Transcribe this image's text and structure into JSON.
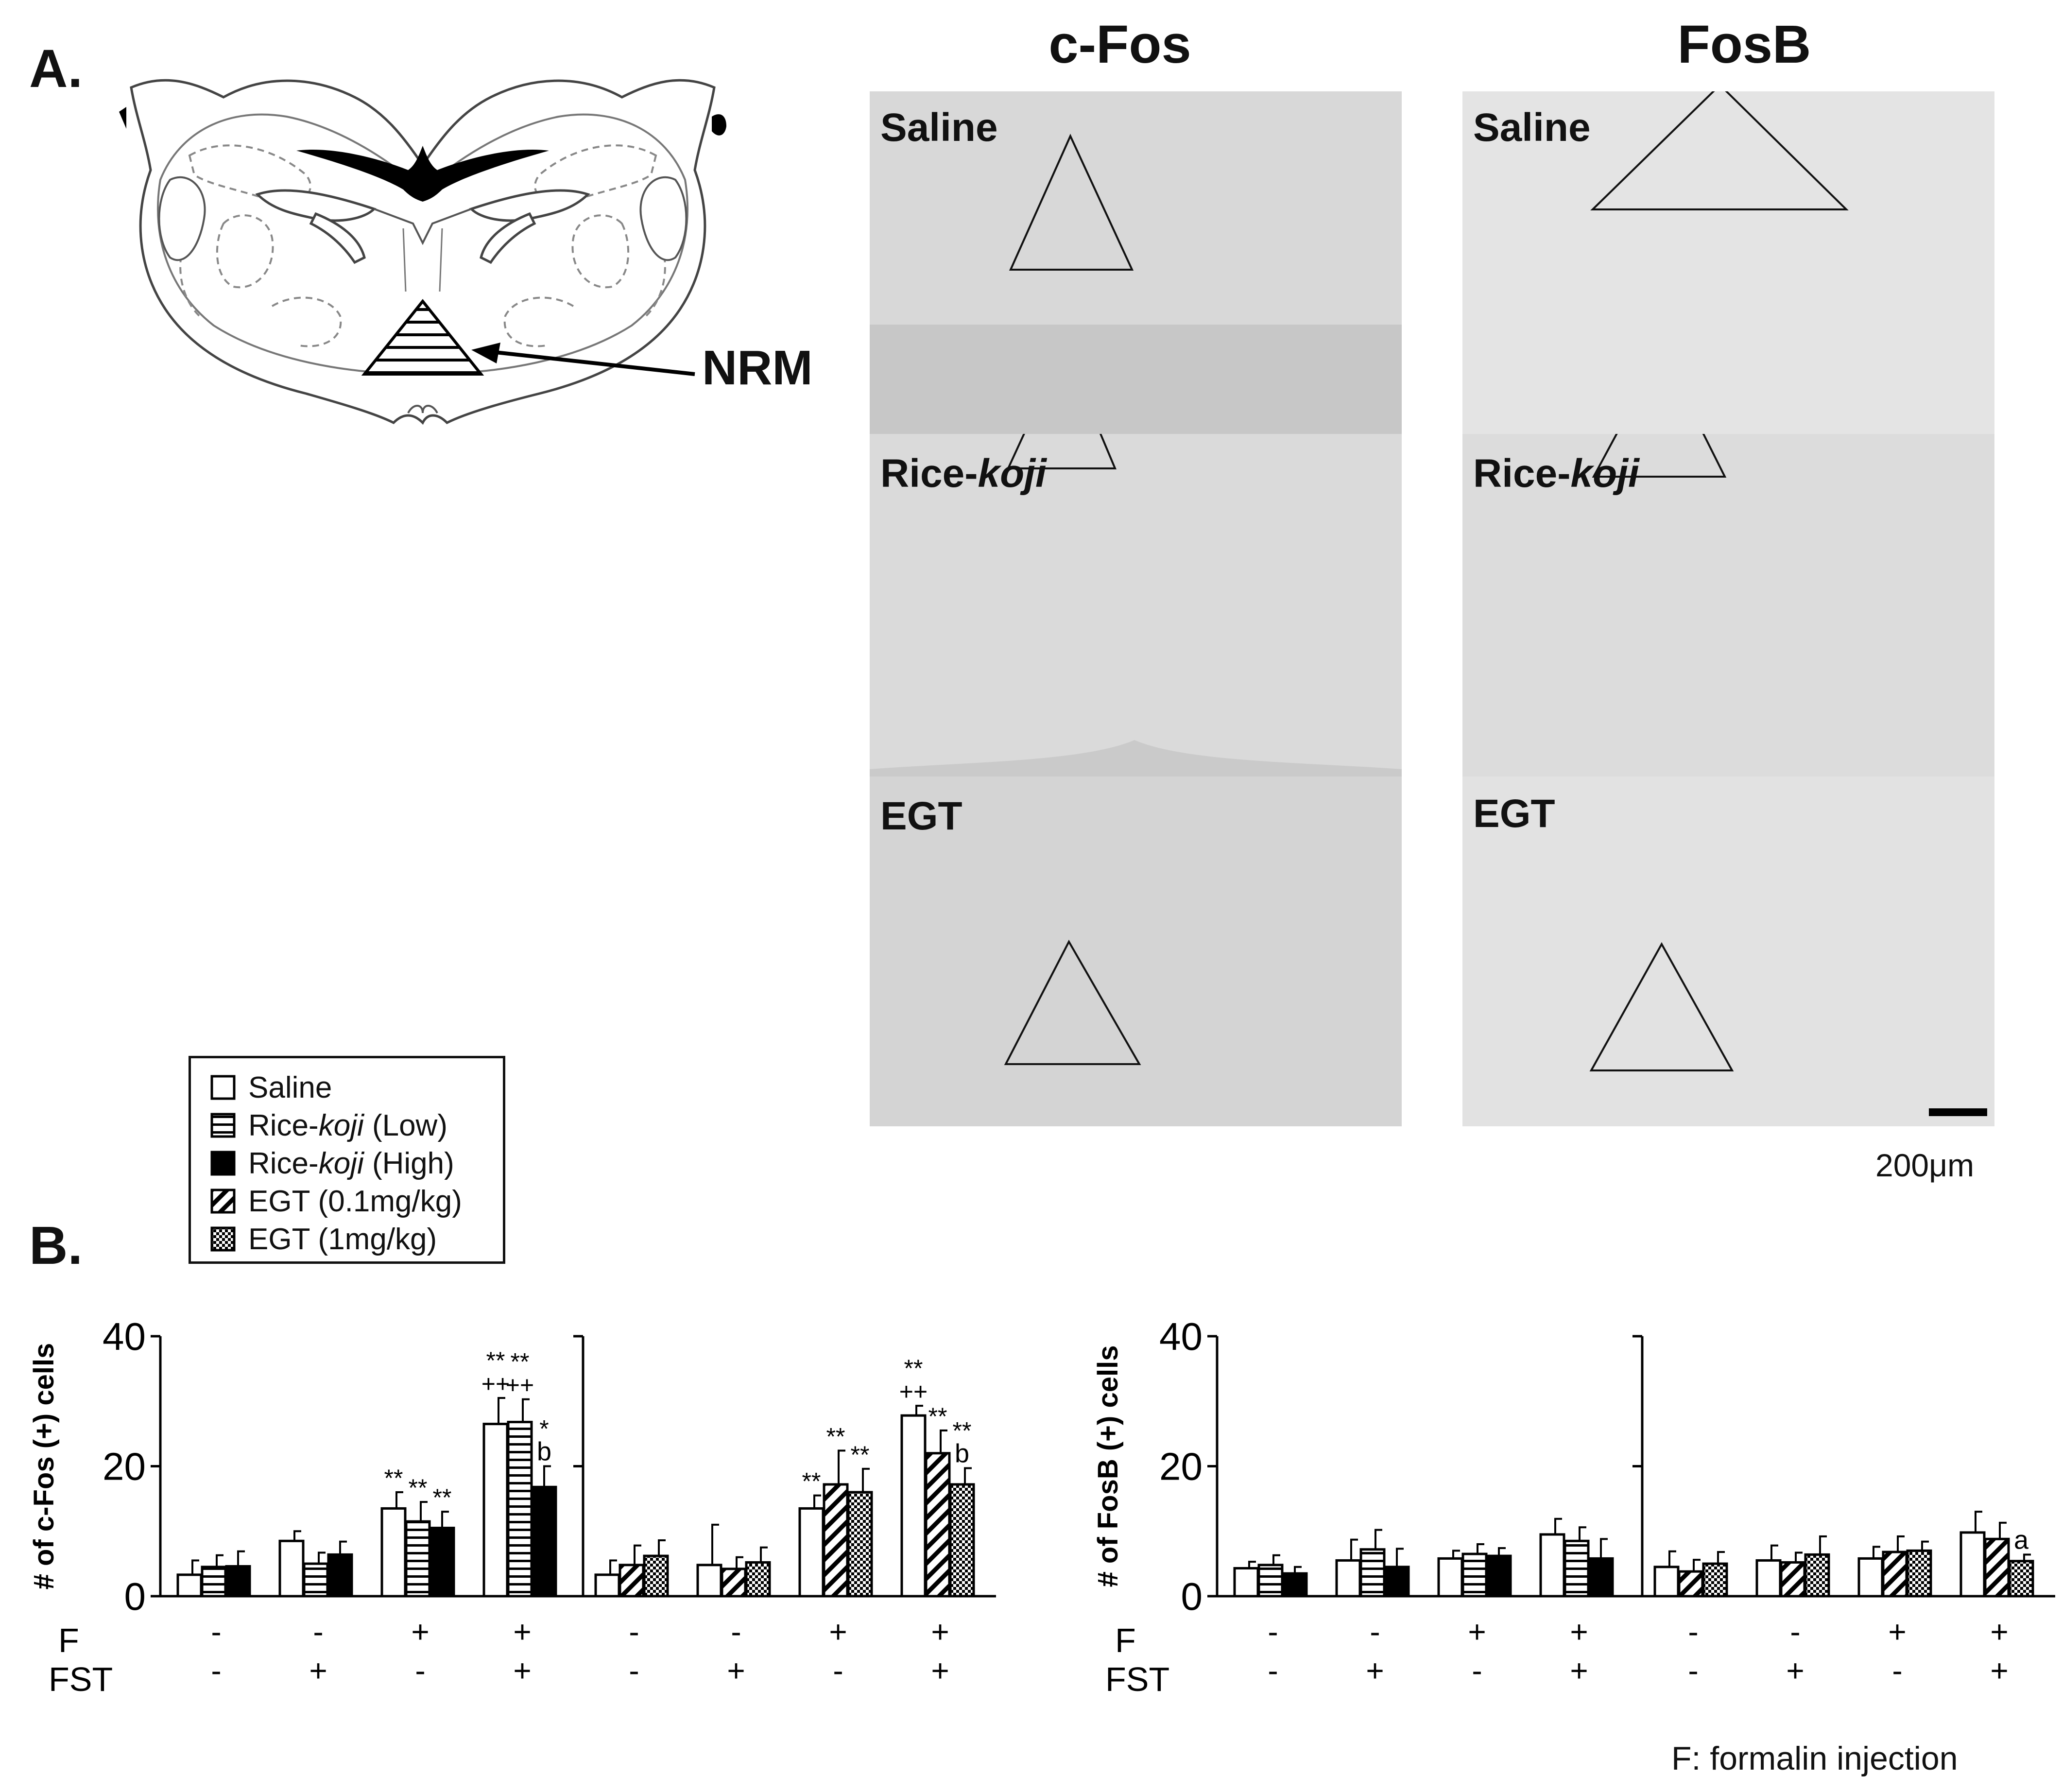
{
  "panels": {
    "a_label": "A.",
    "b_label": "B.",
    "nrm_label": "NRM",
    "column_titles": [
      "c-Fos",
      "FosB"
    ],
    "section_labels": {
      "saline": "Saline",
      "rice_prefix": "Rice-",
      "rice_italic": "koji",
      "egt": "EGT"
    },
    "scale_bar_label": "200μm",
    "footnote": "F: formalin injection"
  },
  "legend": {
    "items": [
      {
        "name": "saline",
        "label": "Saline",
        "pattern": "open"
      },
      {
        "name": "rice-low",
        "prefix": "Rice-",
        "italic": "koji",
        "suffix": " (Low)",
        "pattern": "horizontal"
      },
      {
        "name": "rice-high",
        "prefix": "Rice-",
        "italic": "koji",
        "suffix": " (High)",
        "pattern": "solid"
      },
      {
        "name": "egt-low",
        "label": "EGT (0.1mg/kg)",
        "pattern": "diagonal"
      },
      {
        "name": "egt-high",
        "label": "EGT (1mg/kg)",
        "pattern": "dots"
      }
    ]
  },
  "chart_data": [
    {
      "type": "bar",
      "name": "c-Fos rice-koji",
      "ylabel": "# of c-Fos (+) cells",
      "ylim": [
        0,
        40
      ],
      "yticks": [
        "0",
        "20",
        "40"
      ],
      "row_labels": [
        "F",
        "FST"
      ],
      "categories": [
        {
          "F": "-",
          "FST": "-"
        },
        {
          "F": "-",
          "FST": "+"
        },
        {
          "F": "+",
          "FST": "-"
        },
        {
          "F": "+",
          "FST": "+"
        }
      ],
      "series": [
        {
          "name": "Saline",
          "pattern": "open",
          "values": [
            3.3,
            8.5,
            13.5,
            26.5
          ],
          "errors": [
            2.2,
            1.5,
            2.5,
            4.0
          ],
          "annotations": [
            "",
            "",
            "**",
            "**\n++"
          ]
        },
        {
          "name": "Rice-koji (Low)",
          "pattern": "horizontal",
          "values": [
            4.5,
            5.0,
            11.5,
            26.8
          ],
          "errors": [
            1.8,
            1.7,
            3.0,
            3.5
          ],
          "annotations": [
            "",
            "",
            "**",
            "**\n++"
          ]
        },
        {
          "name": "Rice-koji (High)",
          "pattern": "solid",
          "values": [
            4.6,
            6.4,
            10.5,
            16.8
          ],
          "errors": [
            2.3,
            2.0,
            2.5,
            3.2
          ],
          "annotations": [
            "",
            "",
            "**",
            "*\nb"
          ]
        }
      ]
    },
    {
      "type": "bar",
      "name": "c-Fos EGT",
      "ylabel": "",
      "ylim": [
        0,
        40
      ],
      "yticks": [],
      "row_labels": [
        "F",
        "FST"
      ],
      "categories": [
        {
          "F": "-",
          "FST": "-"
        },
        {
          "F": "-",
          "FST": "+"
        },
        {
          "F": "+",
          "FST": "-"
        },
        {
          "F": "+",
          "FST": "+"
        }
      ],
      "series": [
        {
          "name": "Saline",
          "pattern": "open",
          "values": [
            3.3,
            4.8,
            13.5,
            27.8
          ],
          "errors": [
            2.2,
            6.2,
            2.0,
            1.5
          ],
          "annotations": [
            "",
            "",
            "**",
            "**\n++"
          ]
        },
        {
          "name": "EGT (0.1mg/kg)",
          "pattern": "diagonal",
          "values": [
            4.8,
            4.2,
            17.2,
            22.0
          ],
          "errors": [
            3.0,
            1.8,
            5.2,
            3.5
          ],
          "annotations": [
            "",
            "",
            "**",
            "**"
          ]
        },
        {
          "name": "EGT (1mg/kg)",
          "pattern": "dots",
          "values": [
            6.2,
            5.2,
            16.0,
            17.2
          ],
          "errors": [
            2.4,
            2.3,
            3.6,
            2.5
          ],
          "annotations": [
            "",
            "",
            "**",
            "**\nb"
          ]
        }
      ]
    },
    {
      "type": "bar",
      "name": "FosB rice-koji",
      "ylabel": "# of FosB (+) cells",
      "ylim": [
        0,
        40
      ],
      "yticks": [
        "0",
        "20",
        "40"
      ],
      "row_labels": [
        "F",
        "FST"
      ],
      "categories": [
        {
          "F": "-",
          "FST": "-"
        },
        {
          "F": "-",
          "FST": "+"
        },
        {
          "F": "+",
          "FST": "-"
        },
        {
          "F": "+",
          "FST": "+"
        }
      ],
      "series": [
        {
          "name": "Saline",
          "pattern": "open",
          "values": [
            4.3,
            5.5,
            5.8,
            9.5
          ],
          "errors": [
            1.0,
            3.2,
            1.2,
            2.4
          ],
          "annotations": [
            "",
            "",
            "",
            ""
          ]
        },
        {
          "name": "Rice-koji (Low)",
          "pattern": "horizontal",
          "values": [
            4.8,
            7.2,
            6.5,
            8.5
          ],
          "errors": [
            1.5,
            3.0,
            1.5,
            2.1
          ],
          "annotations": [
            "",
            "",
            "",
            ""
          ]
        },
        {
          "name": "Rice-koji (High)",
          "pattern": "solid",
          "values": [
            3.5,
            4.5,
            6.2,
            5.8
          ],
          "errors": [
            1.0,
            2.8,
            1.2,
            3.0
          ],
          "annotations": [
            "",
            "",
            "",
            ""
          ]
        }
      ]
    },
    {
      "type": "bar",
      "name": "FosB EGT",
      "ylabel": "",
      "ylim": [
        0,
        40
      ],
      "yticks": [],
      "row_labels": [
        "F",
        "FST"
      ],
      "categories": [
        {
          "F": "-",
          "FST": "-"
        },
        {
          "F": "-",
          "FST": "+"
        },
        {
          "F": "+",
          "FST": "-"
        },
        {
          "F": "+",
          "FST": "+"
        }
      ],
      "series": [
        {
          "name": "Saline",
          "pattern": "open",
          "values": [
            4.5,
            5.5,
            5.8,
            9.8
          ],
          "errors": [
            2.4,
            2.3,
            1.8,
            3.2
          ],
          "annotations": [
            "",
            "",
            "",
            ""
          ]
        },
        {
          "name": "EGT (0.1mg/kg)",
          "pattern": "diagonal",
          "values": [
            3.8,
            5.2,
            6.8,
            8.8
          ],
          "errors": [
            1.8,
            1.5,
            2.4,
            2.5
          ],
          "annotations": [
            "",
            "",
            "",
            ""
          ]
        },
        {
          "name": "EGT (1mg/kg)",
          "pattern": "dots",
          "values": [
            5.0,
            6.4,
            7.0,
            5.4
          ],
          "errors": [
            1.8,
            2.8,
            1.4,
            1.0
          ],
          "annotations": [
            "",
            "",
            "",
            "a"
          ]
        }
      ]
    }
  ]
}
